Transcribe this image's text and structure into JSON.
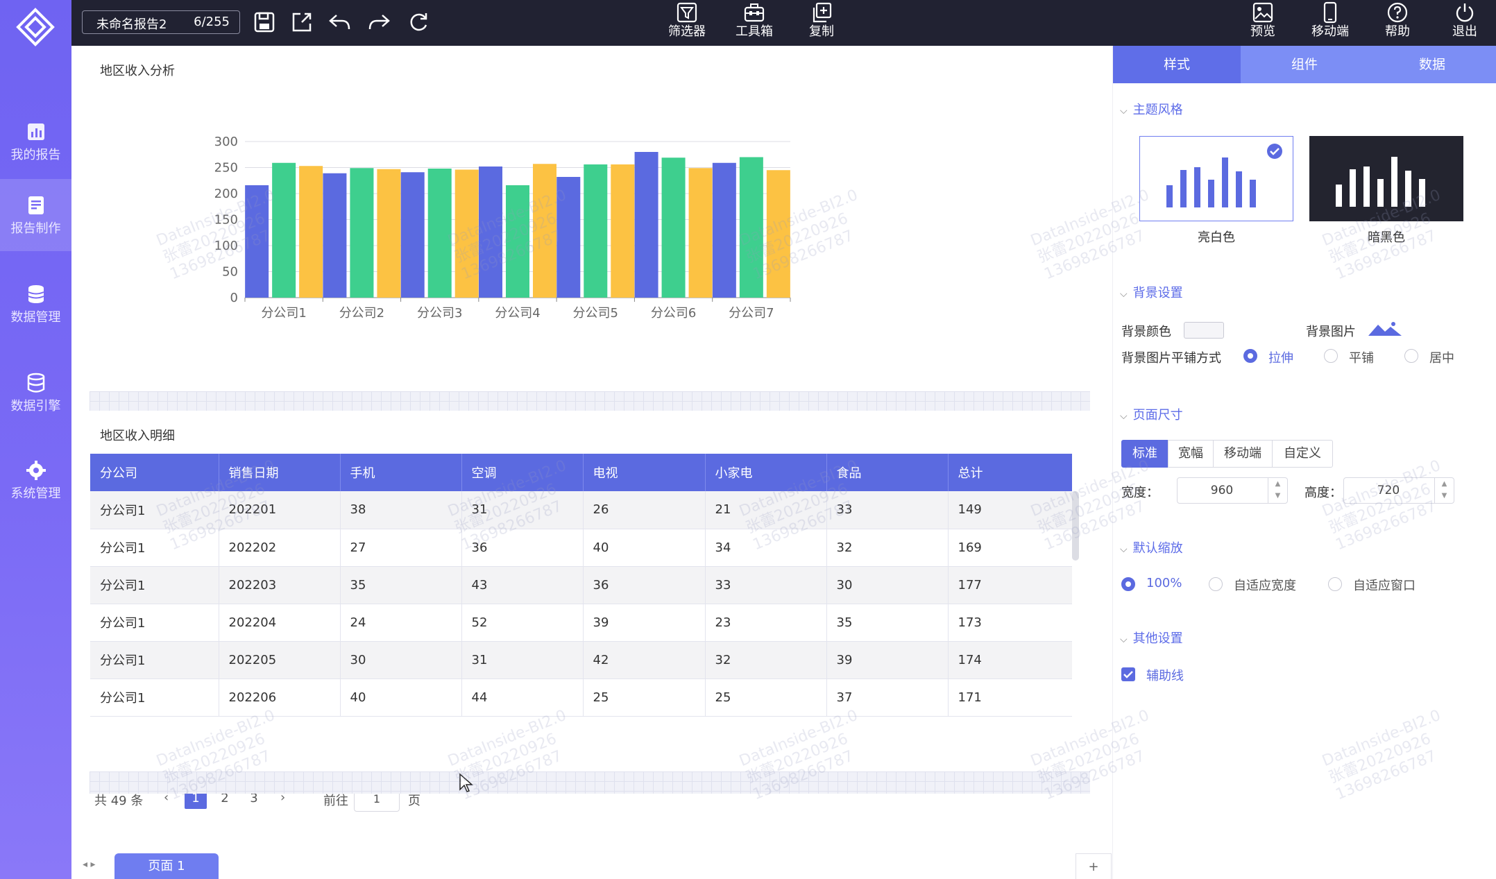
{
  "topbar": {
    "report_name": "未命名报告2",
    "report_count": "6/255",
    "center_buttons": [
      {
        "label": "筛选器",
        "icon": "filter-icon"
      },
      {
        "label": "工具箱",
        "icon": "toolbox-icon"
      },
      {
        "label": "复制",
        "icon": "copy-icon"
      }
    ],
    "right_buttons": [
      {
        "label": "预览",
        "icon": "preview-icon"
      },
      {
        "label": "移动端",
        "icon": "mobile-icon"
      },
      {
        "label": "帮助",
        "icon": "help-icon"
      },
      {
        "label": "退出",
        "icon": "power-icon"
      }
    ]
  },
  "sidebar": {
    "items": [
      {
        "label": "我的报告",
        "icon": "report-chart-icon",
        "active": false
      },
      {
        "label": "报告制作",
        "icon": "edit-document-icon",
        "active": true
      },
      {
        "label": "数据管理",
        "icon": "database-icon",
        "active": false
      },
      {
        "label": "数据引擎",
        "icon": "data-engine-icon",
        "active": false
      },
      {
        "label": "系统管理",
        "icon": "gear-icon",
        "active": false
      }
    ]
  },
  "chart_title": "地区收入分析",
  "chart_data": {
    "type": "bar",
    "categories": [
      "分公司1",
      "分公司2",
      "分公司3",
      "分公司4",
      "分公司5",
      "分公司6",
      "分公司7"
    ],
    "series": [
      {
        "color": "#5b6ae0",
        "values": [
          216,
          239,
          241,
          252,
          232,
          280,
          259
        ]
      },
      {
        "color": "#3ecf8e",
        "values": [
          259,
          249,
          248,
          216,
          256,
          269,
          270
        ]
      },
      {
        "color": "#fcc243",
        "values": [
          253,
          247,
          246,
          257,
          256,
          249,
          245
        ]
      }
    ],
    "yticks": [
      "0",
      "50",
      "100",
      "150",
      "200",
      "250",
      "300"
    ],
    "ylim": [
      0,
      300
    ],
    "grid": true
  },
  "table_title": "地区收入明细",
  "table": {
    "headers": [
      "分公司",
      "销售日期",
      "手机",
      "空调",
      "电视",
      "小家电",
      "食品",
      "总计"
    ],
    "rows": [
      [
        "分公司1",
        "202201",
        "38",
        "31",
        "26",
        "21",
        "33",
        "149"
      ],
      [
        "分公司1",
        "202202",
        "27",
        "36",
        "40",
        "34",
        "32",
        "169"
      ],
      [
        "分公司1",
        "202203",
        "35",
        "43",
        "36",
        "33",
        "30",
        "177"
      ],
      [
        "分公司1",
        "202204",
        "24",
        "52",
        "39",
        "23",
        "35",
        "173"
      ],
      [
        "分公司1",
        "202205",
        "30",
        "31",
        "42",
        "32",
        "39",
        "174"
      ],
      [
        "分公司1",
        "202206",
        "40",
        "44",
        "25",
        "25",
        "37",
        "171"
      ]
    ]
  },
  "pager": {
    "total": "共 49 条",
    "pages": [
      "1",
      "2",
      "3"
    ],
    "goto_label": "前往",
    "goto_value": "1",
    "page_unit": "页"
  },
  "page_tab": "页面 1",
  "add_tab": "+",
  "panel": {
    "tabs": [
      "样式",
      "组件",
      "数据"
    ],
    "theme": {
      "title": "主题风格",
      "light": "亮白色",
      "dark": "暗黑色"
    },
    "background": {
      "title": "背景设置",
      "color_label": "背景颜色",
      "image_label": "背景图片",
      "tile_label": "背景图片平铺方式",
      "options": [
        "拉伸",
        "平铺",
        "居中"
      ]
    },
    "page_size": {
      "title": "页面尺寸",
      "tabs": [
        "标准",
        "宽幅",
        "移动端",
        "自定义"
      ],
      "width_label": "宽度：",
      "width_value": "960",
      "height_label": "高度：",
      "height_value": "720"
    },
    "zoom": {
      "title": "默认缩放",
      "options": [
        "100%",
        "自适应宽度",
        "自适应窗口"
      ]
    },
    "other": {
      "title": "其他设置",
      "guide_label": "辅助线"
    }
  },
  "watermark": {
    "line1": "DataInside-BI2.0",
    "line2": "张蕾20220926",
    "line3": "13698266787"
  }
}
